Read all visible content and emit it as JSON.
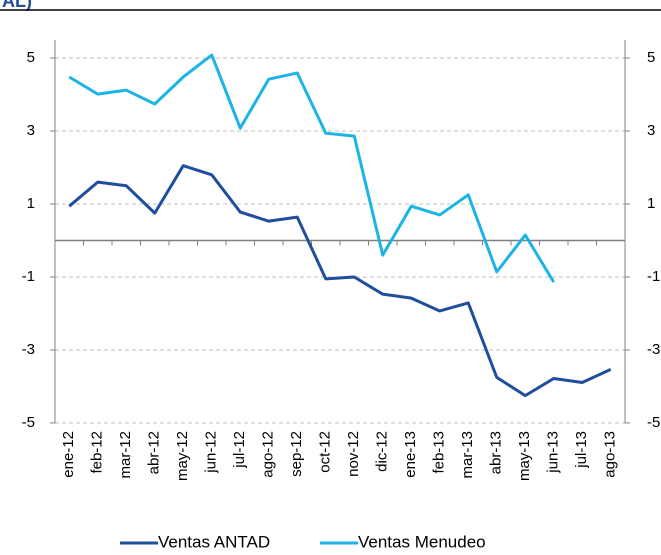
{
  "chart_data": {
    "type": "line",
    "title": "AL)",
    "categories": [
      "ene-12",
      "feb-12",
      "mar-12",
      "abr-12",
      "may-12",
      "jun-12",
      "jul-12",
      "ago-12",
      "sep-12",
      "oct-12",
      "nov-12",
      "dic-12",
      "ene-13",
      "feb-13",
      "mar-13",
      "abr-13",
      "may-13",
      "jun-13",
      "jul-13",
      "ago-13"
    ],
    "series": [
      {
        "name": "Ventas ANTAD",
        "color": "#1f4e9c",
        "values": [
          0.94,
          1.6,
          1.5,
          0.75,
          2.05,
          1.8,
          0.78,
          0.53,
          0.64,
          -1.05,
          -1.0,
          -1.47,
          -1.58,
          -1.93,
          -1.71,
          -3.75,
          -4.25,
          -3.78,
          -3.89,
          -3.53
        ]
      },
      {
        "name": "Ventas Menudeo",
        "color": "#1cb4e6",
        "values": [
          4.48,
          4.01,
          4.12,
          3.74,
          4.48,
          5.08,
          3.08,
          4.42,
          4.59,
          2.94,
          2.86,
          -0.4,
          0.94,
          0.7,
          1.25,
          -0.86,
          0.15,
          -1.14,
          null,
          null
        ]
      }
    ],
    "ylim": [
      -5,
      5
    ],
    "yticks": [
      -5,
      -3,
      -1,
      1,
      3,
      5
    ],
    "y2lim": [
      -5,
      5
    ],
    "y2ticks": [
      -5,
      -3,
      -1,
      1,
      3,
      5
    ],
    "grid": true
  }
}
